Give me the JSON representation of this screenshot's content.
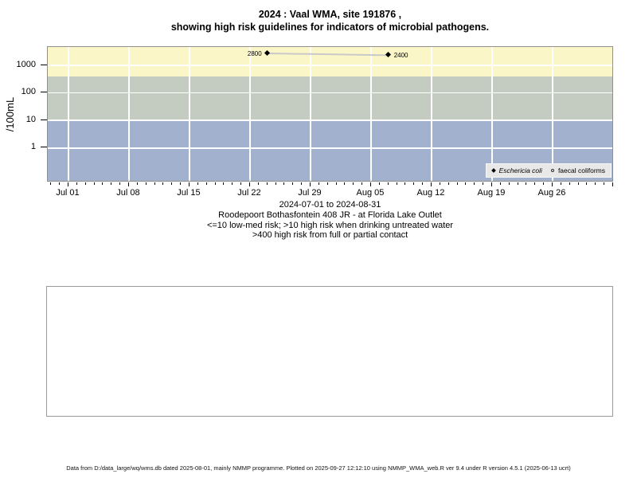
{
  "page": {
    "title_line1": "2024 : Vaal WMA, site 191876 ,",
    "title_line2": "showing high risk guidelines for indicators of microbial pathogens.",
    "caption": {
      "date_range": "2024-07-01 to 2024-08-31",
      "site_description": "Roodepoort Bothasfontein 408 JR - at Florida Lake Outlet",
      "risk_note_1": "<=10 low-med risk; >10 high risk when drinking untreated water",
      "risk_note_2": ">400 high risk from full or partial contact"
    },
    "footer": "Data from D:/data_large/wq/wms.db dated 2025-08-01, mainly NMMP programme. Plotted on 2025-09-27 12:12:10 using NMMP_WMA_web.R ver 9.4 under R version 4.5.1 (2025-06-13 ucrt)"
  },
  "chart_data": {
    "type": "scatter",
    "title": "2024 : Vaal WMA, site 191876 , showing high risk guidelines for indicators of microbial pathogens.",
    "xlabel": "",
    "ylabel": "/100mL",
    "y_scale": "log",
    "ylim": [
      0.06,
      4600
    ],
    "y_tick_values": [
      1,
      10,
      100,
      1000
    ],
    "y_tick_labels": [
      "1",
      "10",
      "100",
      "1000"
    ],
    "x_tick_labels": [
      "Jul 01",
      "Jul 08",
      "Jul 15",
      "Jul 22",
      "Jul 29",
      "Aug 05",
      "Aug 12",
      "Aug 19",
      "Aug 26"
    ],
    "x_range": "2024-06-29 to 2024-09-02",
    "grid": true,
    "legend_position": "bottom-right",
    "bands": [
      {
        "meaning": ">400 high risk from full or partial contact",
        "from": 400,
        "to": 4600,
        "color": "#fbf6c8"
      },
      {
        "meaning": ">10 high risk when drinking untreated water",
        "from": 10,
        "to": 400,
        "color": "#c4ccc1"
      },
      {
        "meaning": "<=10 low-med risk",
        "from": 0.06,
        "to": 10,
        "color": "#a2b1cd"
      }
    ],
    "series": [
      {
        "name": "Eschericia coli",
        "marker": "filled-diamond",
        "color": "#000000",
        "connector_color": "#c9c9c9",
        "points": [
          {
            "date_est": "2024-07-24",
            "value": 2800,
            "label": "2800",
            "label_side": "left"
          },
          {
            "date_est": "2024-08-07",
            "value": 2400,
            "label": "2400",
            "label_side": "right"
          }
        ]
      },
      {
        "name": "faecal coliforms",
        "marker": "open-circle",
        "color": "#000000",
        "points": []
      }
    ],
    "legend": {
      "background": "#e8e8e8",
      "entries": [
        {
          "marker": "filled-diamond",
          "label": "Eschericia coli",
          "italic": true
        },
        {
          "marker": "open-circle",
          "label": "faecal coliforms",
          "italic": false
        }
      ]
    }
  }
}
